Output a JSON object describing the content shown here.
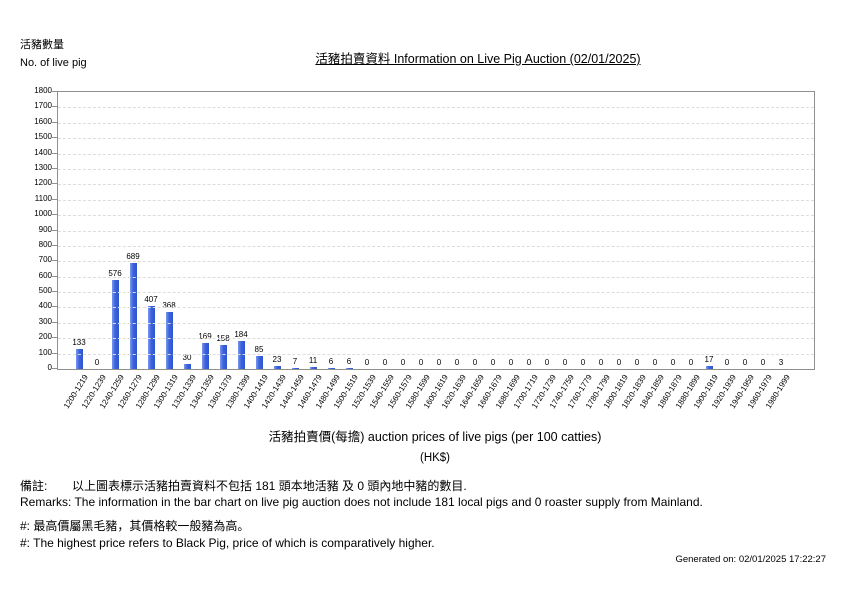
{
  "page": {
    "y_axis_caption_zh": "活豬數量",
    "y_axis_caption_en": "No. of live pig",
    "title": "活豬拍賣資料 Information on Live Pig Auction (02/01/2025)"
  },
  "chart_data": {
    "type": "bar",
    "title": "活豬拍賣資料 Information on Live Pig Auction (02/01/2025)",
    "ylabel": "活豬數量 No. of live pig",
    "xlabel": "活豬拍賣價(每擔) auction prices of live pigs (per 100 catties) (HK$)",
    "ylim": [
      0,
      1800
    ],
    "ytick_step": 100,
    "grid": true,
    "legend": false,
    "bar_color": "#3a63dd",
    "categories": [
      "1200-1219",
      "1220-1239",
      "1240-1259",
      "1260-1279",
      "1280-1299",
      "1300-1319",
      "1320-1339",
      "1340-1359",
      "1360-1379",
      "1380-1399",
      "1400-1419",
      "1420-1439",
      "1440-1459",
      "1460-1479",
      "1480-1499",
      "1500-1519",
      "1520-1539",
      "1540-1559",
      "1560-1579",
      "1580-1599",
      "1600-1619",
      "1620-1639",
      "1640-1659",
      "1660-1679",
      "1680-1699",
      "1700-1719",
      "1720-1739",
      "1740-1759",
      "1760-1779",
      "1780-1799",
      "1800-1819",
      "1820-1839",
      "1840-1859",
      "1860-1879",
      "1880-1899",
      "1900-1919",
      "1920-1939",
      "1940-1959",
      "1960-1979",
      "1980-1999"
    ],
    "values": [
      133,
      0,
      576,
      689,
      407,
      368,
      30,
      169,
      158,
      184,
      85,
      23,
      7,
      11,
      6,
      6,
      0,
      0,
      0,
      0,
      0,
      0,
      0,
      0,
      0,
      0,
      0,
      0,
      0,
      0,
      0,
      0,
      0,
      0,
      0,
      17,
      0,
      0,
      0,
      3
    ]
  },
  "xaxis_title": {
    "line1": "活豬拍賣價(每擔) auction prices of live pigs (per 100 catties)",
    "line2": "(HK$)"
  },
  "remarks": {
    "label_zh": "備註:",
    "text_zh": "以上圖表標示活豬拍賣資料不包括 181 頭本地活豬 及 0 頭內地中豬的數目.",
    "text_en": "Remarks: The information in the bar chart on live pig auction does not include 181 local pigs and 0 roaster supply from Mainland.",
    "hash_zh": "#: 最高價屬黑毛豬，其價格較一般豬為高。",
    "hash_en": "#: The highest price refers to Black Pig, price of which is comparatively higher."
  },
  "footer": {
    "generated_on": "Generated on: 02/01/2025 17:22:27"
  }
}
